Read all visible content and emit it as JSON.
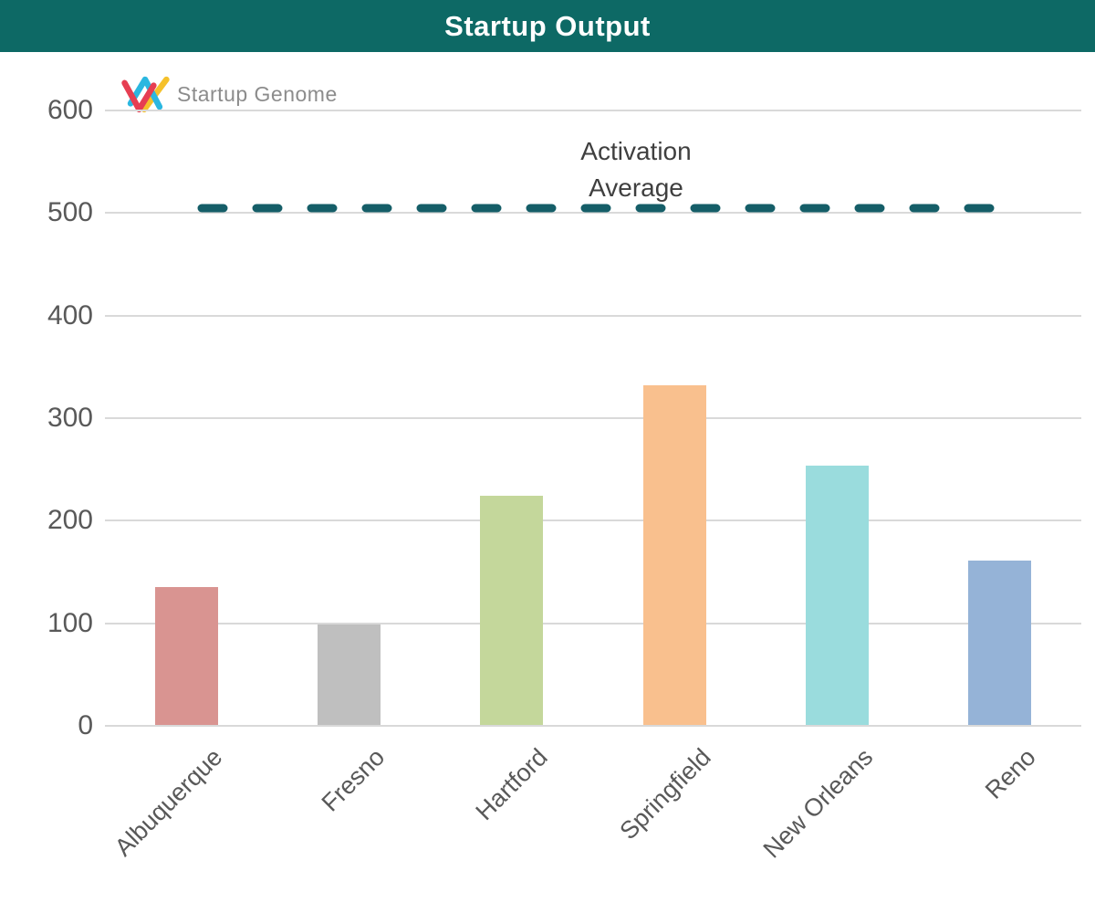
{
  "header": {
    "title": "Startup Output",
    "background_color": "#0d6965",
    "text_color": "#ffffff"
  },
  "logo": {
    "text": "Startup Genome",
    "text_color": "#8c8c8c",
    "mark_colors": {
      "red": "#e63e52",
      "yellow": "#f5c12b",
      "cyan": "#2bb7e0"
    }
  },
  "annotation": {
    "line1": "Activation",
    "line2": "Average"
  },
  "chart_data": {
    "type": "bar",
    "title": "Startup Output",
    "categories": [
      "Albuquerque",
      "Fresno",
      "Hartford",
      "Springfield",
      "New Orleans",
      "Reno"
    ],
    "values": [
      135,
      99,
      224,
      332,
      254,
      161
    ],
    "bar_colors": [
      "#d99491",
      "#bfbfbf",
      "#c4d79b",
      "#f9c08e",
      "#9adcdd",
      "#95b3d7"
    ],
    "xlabel": "",
    "ylabel": "",
    "ylim": [
      0,
      600
    ],
    "yticks": [
      0,
      100,
      200,
      300,
      400,
      500,
      600
    ],
    "grid": true,
    "legend": false,
    "reference_line": {
      "label": "Activation Average",
      "value": 505,
      "color": "#155e68",
      "style": "dashed"
    },
    "tick_color": "#595959",
    "grid_color": "#d9d9d9"
  }
}
